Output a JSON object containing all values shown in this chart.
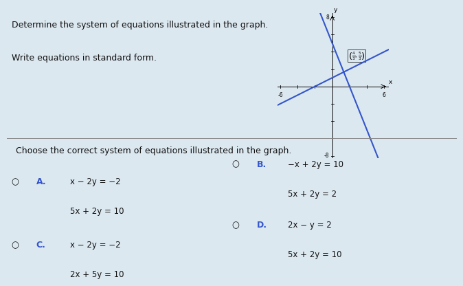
{
  "title_line1": "Determine the system of equations illustrated in the graph.",
  "title_line2": "Write equations in standard form.",
  "intersection_x": 1.3333,
  "intersection_y": 1.6667,
  "line1_slope": 0.5,
  "line1_intercept": 1.0,
  "line1_color": "#3355cc",
  "line2_slope": -2.5,
  "line2_intercept": 5.0,
  "line2_color": "#3355cc",
  "xmin": -6,
  "xmax": 6,
  "ymin": -8,
  "ymax": 8,
  "graph_bg": "#dce8f0",
  "overall_bg": "#dce8f0",
  "text_color": "#111111",
  "choices": [
    {
      "label": "A.",
      "eq1": "x − 2y = −2",
      "eq2": "5x + 2y = 10"
    },
    {
      "label": "B.",
      "eq1": "−x + 2y = 10",
      "eq2": "5x + 2y = 2"
    },
    {
      "label": "C.",
      "eq1": "x − 2y = −2",
      "eq2": "2x + 5y = 10"
    },
    {
      "label": "D.",
      "eq1": "2x − y = 2",
      "eq2": "5x + 2y = 10"
    }
  ],
  "choose_text": "Choose the correct system of equations illustrated in the graph."
}
